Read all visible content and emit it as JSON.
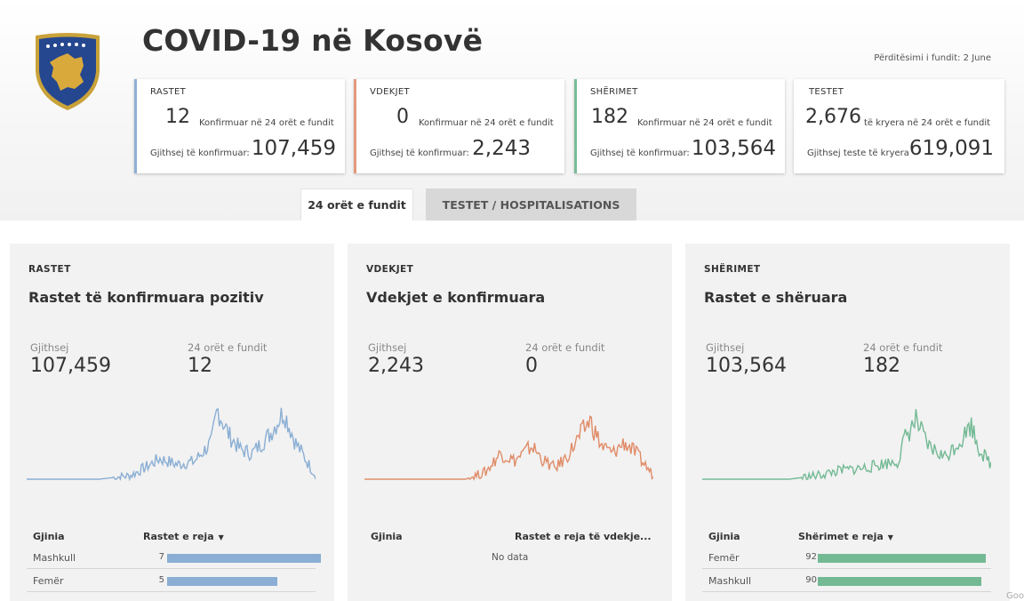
{
  "header": {
    "title": "COVID-19 në Kosovë",
    "updated": "Përditësimi i fundit: 2 June"
  },
  "kpis": [
    {
      "label": "RASTET",
      "number": "12",
      "sub": "Konfirmuar në 24 orët e fundit",
      "total_label": "Gjithsej të konfirmuar:",
      "total": "107,459",
      "accent": "#8eb0d6"
    },
    {
      "label": "VDEKJET",
      "number": "0",
      "sub": "Konfirmuar në 24 orët e fundit",
      "total_label": "Gjithsej të konfirmuar:",
      "total": "2,243",
      "accent": "#e39a7c"
    },
    {
      "label": "SHËRIMET",
      "number": "182",
      "sub": "Konfirmuar në 24 orët e fundit",
      "total_label": "Gjithsej të konfirmuar:",
      "total": "103,564",
      "accent": "#78bd98"
    },
    {
      "label": "TESTET",
      "number": "2,676",
      "sub": "të kryera në 24 orët e fundit",
      "total_label": "Gjithsej teste të kryera",
      "total": "619,091",
      "accent": "#ffffff"
    }
  ],
  "tabs": [
    {
      "label": "24 orët e fundit",
      "active": true
    },
    {
      "label": "TESTET / HOSPITALISATIONS",
      "active": false
    }
  ],
  "panels": [
    {
      "category": "RASTET",
      "title": "Rastet të konfirmuara pozitiv",
      "label_total": "Gjithsej",
      "label_24h": "24 orët e fundit",
      "value_total": "107,459",
      "value_24h": "12",
      "color": "#8aaed4",
      "table": {
        "col1": "Gjinia",
        "col2": "Rastet e reja",
        "rows": [
          {
            "label": "Mashkull",
            "value": 7
          },
          {
            "label": "Femër",
            "value": 5
          }
        ]
      }
    },
    {
      "category": "VDEKJET",
      "title": "Vdekjet e konfirmuara",
      "label_total": "Gjithsej",
      "label_24h": "24 orët e fundit",
      "value_total": "2,243",
      "value_24h": "0",
      "color": "#e08c68",
      "table": {
        "col1": "Gjinia",
        "col2": "Rastet e reja të vdekje...",
        "no_data": "No data",
        "rows": []
      }
    },
    {
      "category": "SHËRIMET",
      "title": "Rastet e shëruara",
      "label_total": "Gjithsej",
      "label_24h": "24 orët e fundit",
      "value_total": "103,564",
      "value_24h": "182",
      "color": "#72b994",
      "table": {
        "col1": "Gjinia",
        "col2": "Shërimet e reja",
        "rows": [
          {
            "label": "Femër",
            "value": 92
          },
          {
            "label": "Mashkull",
            "value": 90
          }
        ]
      }
    }
  ],
  "google_mark": "Goo"
}
